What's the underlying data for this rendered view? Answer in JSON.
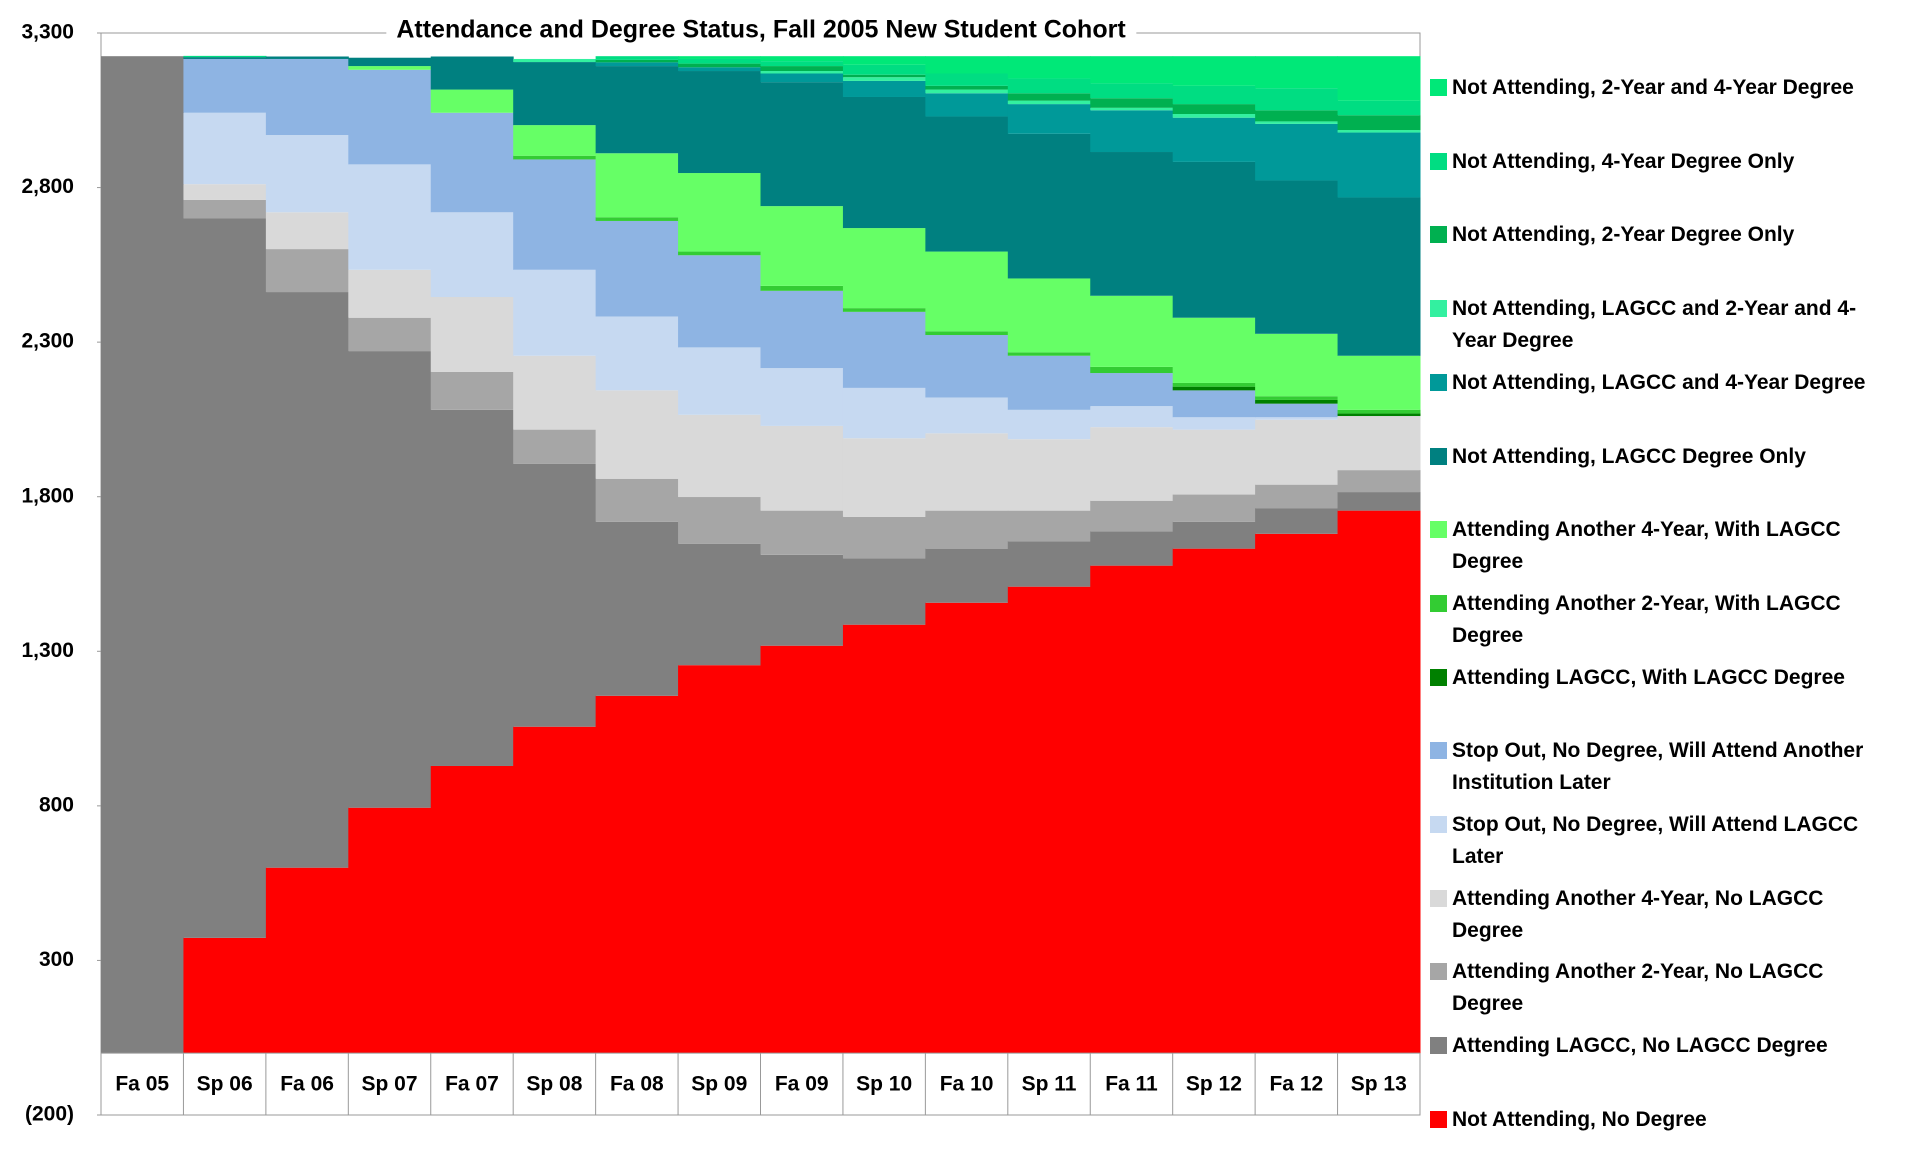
{
  "chart_data": {
    "type": "area",
    "stacked": true,
    "title": "Attendance and Degree Status, Fall 2005 New Student Cohort",
    "categories": [
      "Fa 05",
      "Sp 06",
      "Fa 06",
      "Sp 07",
      "Fa 07",
      "Sp 08",
      "Fa 08",
      "Sp 09",
      "Fa 09",
      "Sp 10",
      "Fa 10",
      "Sp 11",
      "Fa 11",
      "Sp 12",
      "Fa 12",
      "Sp 13"
    ],
    "ylim": [
      -200,
      3300
    ],
    "yticks": [
      {
        "value": -200,
        "label": "(200)"
      },
      300,
      800,
      {
        "value": 1300,
        "label": "1,300"
      },
      {
        "value": 1800,
        "label": "1,800"
      },
      {
        "value": 2300,
        "label": "2,300"
      },
      {
        "value": 2800,
        "label": "2,800"
      },
      {
        "value": 3300,
        "label": "3,300"
      }
    ],
    "series": [
      {
        "name": "Not Attending, No Degree",
        "color": "#ff0000",
        "values": [
          0,
          373,
          600,
          794,
          929,
          1056,
          1156,
          1255,
          1318,
          1386,
          1457,
          1509,
          1577,
          1632,
          1680,
          1755
        ]
      },
      {
        "name": "Attending LAGCC, No LAGCC Degree",
        "color": "#808080",
        "values": [
          3225,
          2327,
          1862,
          1477,
          1152,
          850,
          563,
          393,
          294,
          214,
          175,
          147,
          111,
          87,
          83,
          60
        ]
      },
      {
        "name": "Attending Another 2-Year, No LAGCC Degree",
        "color": "#a6a6a6",
        "values": [
          0,
          60,
          139,
          108,
          123,
          111,
          139,
          151,
          143,
          135,
          123,
          99,
          99,
          88,
          76,
          71
        ]
      },
      {
        "name": "Attending Another 4-Year, No LAGCC Degree",
        "color": "#d9d9d9",
        "values": [
          0,
          51,
          119,
          155,
          242,
          239,
          286,
          266,
          274,
          254,
          250,
          231,
          238,
          210,
          210,
          175
        ]
      },
      {
        "name": "Stop Out, No Degree, Will Attend LAGCC Later",
        "color": "#c6d9f1",
        "values": [
          0,
          231,
          250,
          341,
          274,
          278,
          239,
          218,
          187,
          163,
          116,
          95,
          68,
          40,
          8,
          0
        ]
      },
      {
        "name": "Stop Out, No Degree, Will Attend Another Institution Later",
        "color": "#8eb4e3",
        "values": [
          0,
          174,
          246,
          306,
          322,
          357,
          309,
          298,
          250,
          246,
          202,
          175,
          107,
          87,
          44,
          0
        ]
      },
      {
        "name": "Attending LAGCC, With LAGCC Degree",
        "color": "#008000",
        "values": [
          0,
          0,
          0,
          0,
          0,
          0,
          0,
          0,
          0,
          0,
          0,
          0,
          0,
          12,
          12,
          8
        ]
      },
      {
        "name": "Attending Another 2-Year, With LAGCC Degree",
        "color": "#33cc33",
        "values": [
          0,
          0,
          0,
          0,
          0,
          12,
          12,
          12,
          16,
          12,
          12,
          11,
          20,
          12,
          12,
          12
        ]
      },
      {
        "name": "Attending Another 4-Year, With LAGCC Degree",
        "color": "#66ff66",
        "values": [
          0,
          0,
          0,
          12,
          75,
          99,
          207,
          254,
          258,
          259,
          258,
          239,
          230,
          211,
          202,
          175
        ]
      },
      {
        "name": "Not Attending, LAGCC Degree Only",
        "color": "#008080",
        "values": [
          0,
          6,
          8,
          27,
          107,
          204,
          282,
          330,
          401,
          424,
          437,
          468,
          465,
          504,
          496,
          512
        ]
      },
      {
        "name": "Not Attending, LAGCC and 4-Year Degree",
        "color": "#009999",
        "values": [
          0,
          0,
          0,
          0,
          0,
          0,
          12,
          12,
          28,
          52,
          75,
          96,
          135,
          143,
          183,
          210
        ]
      },
      {
        "name": "Not Attending, LAGCC and 2-Year and 4-Year Degree",
        "color": "#33f0a0",
        "values": [
          0,
          0,
          0,
          0,
          0,
          10,
          0,
          0,
          8,
          12,
          12,
          11,
          8,
          12,
          8,
          8
        ]
      },
      {
        "name": "Not Attending, 2-Year Degree Only",
        "color": "#00b050",
        "values": [
          0,
          0,
          0,
          0,
          0,
          0,
          8,
          12,
          16,
          8,
          12,
          24,
          31,
          32,
          36,
          48
        ]
      },
      {
        "name": "Not Attending, 4-Year Degree Only",
        "color": "#00dd82",
        "values": [
          0,
          4,
          0,
          0,
          0,
          0,
          12,
          15,
          16,
          32,
          40,
          48,
          48,
          59,
          71,
          47
        ]
      },
      {
        "name": "Not Attending, 2-Year and 4-Year Degree",
        "color": "#00e878",
        "values": [
          0,
          0,
          0,
          0,
          0,
          0,
          0,
          9,
          16,
          28,
          56,
          72,
          88,
          96,
          104,
          144
        ]
      }
    ]
  }
}
